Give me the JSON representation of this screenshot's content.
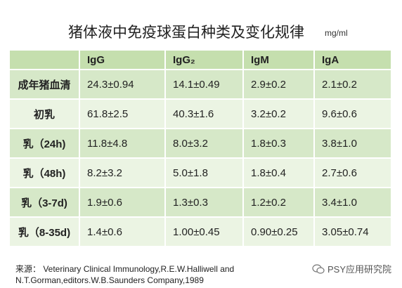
{
  "header": {
    "title": "猪体液中免疫球蛋白种类及变化规律",
    "unit": "mg/ml"
  },
  "table": {
    "columns": [
      "",
      "IgG",
      "IgG₂",
      "IgM",
      "IgA"
    ],
    "rows": [
      [
        "成年猪血清",
        "24.3±0.94",
        "14.1±0.49",
        "2.9±0.2",
        "2.1±0.2"
      ],
      [
        "初乳",
        "61.8±2.5",
        "40.3±1.6",
        "3.2±0.2",
        "9.6±0.6"
      ],
      [
        "乳（24h)",
        "11.8±4.8",
        "8.0±3.2",
        "1.8±0.3",
        "3.8±1.0"
      ],
      [
        "乳（48h)",
        "8.2±3.2",
        "5.0±1.8",
        "1.8±0.4",
        "2.7±0.6"
      ],
      [
        "乳（3-7d)",
        "1.9±0.6",
        "1.3±0.3",
        "1.2±0.2",
        "3.4±1.0"
      ],
      [
        "乳（8-35d)",
        "1.4±0.6",
        "1.00±0.45",
        "0.90±0.25",
        "3.05±0.74"
      ]
    ]
  },
  "source": {
    "line1": "来源：  Veterinary Clinical Immunology,R.E.W.Halliwell and",
    "line2": "N.T.Gorman,editors.W.B.Saunders Company,1989"
  },
  "watermark": {
    "text": "PSY应用研究院"
  }
}
